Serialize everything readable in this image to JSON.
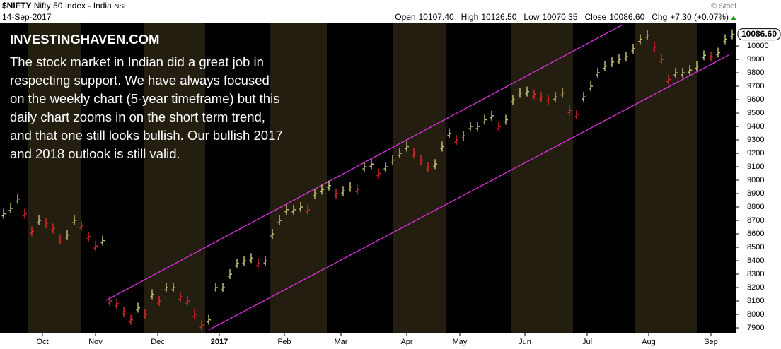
{
  "header": {
    "symbol": "$NIFTY",
    "name": "Nifty 50 Index - India",
    "exchange": "NSE",
    "date": "14-Sep-2017",
    "copyright": "© StockCharts.com",
    "quote": [
      {
        "label": "Open",
        "value": "10107.40"
      },
      {
        "label": "High",
        "value": "10126.50"
      },
      {
        "label": "Low",
        "value": "10070.35"
      },
      {
        "label": "Close",
        "value": "10086.60"
      },
      {
        "label": "Chg",
        "value": "+7.30 (+0.07%)"
      }
    ]
  },
  "annotation": {
    "title": "INVESTINGHAVEN.COM",
    "lines": [
      "The stock market in Indian did a great job in",
      "respecting support. We have always focused",
      "on the weekly chart (5-year timeframe) but this",
      "daily chart zooms in on the short term trend,",
      "and that one still looks bullish. Our bullish 2017",
      "and 2018 outlook is still valid."
    ]
  },
  "chart_data": {
    "type": "close-bar",
    "x": [
      0,
      1,
      2,
      3,
      4,
      5,
      6,
      7,
      8,
      9,
      10,
      11,
      12,
      13,
      14,
      15,
      16,
      17,
      18,
      19,
      20,
      21,
      22,
      23,
      24,
      25,
      26,
      27,
      28,
      29,
      30,
      31,
      32,
      33,
      34,
      35,
      36,
      37,
      38,
      39,
      40,
      41,
      42,
      43,
      44,
      45,
      46,
      47,
      48,
      49,
      50,
      51,
      52,
      53,
      54,
      55,
      56,
      57,
      58,
      59,
      60,
      61,
      62,
      63,
      64,
      65,
      66,
      67,
      68,
      69,
      70,
      71,
      72,
      73,
      74,
      75,
      76,
      77,
      78,
      79,
      80,
      81,
      82,
      83,
      84,
      85,
      86,
      87,
      88,
      89,
      90,
      91,
      92,
      93,
      94,
      95,
      96,
      97,
      98,
      99,
      100,
      101,
      102,
      103
    ],
    "values": [
      8750,
      8790,
      8860,
      8750,
      8620,
      8700,
      8680,
      8640,
      8560,
      8590,
      8700,
      8660,
      8580,
      8510,
      8550,
      8100,
      8080,
      8020,
      7960,
      8050,
      8000,
      8150,
      8100,
      8200,
      8200,
      8130,
      8100,
      8000,
      7920,
      7960,
      8200,
      8200,
      8300,
      8380,
      8400,
      8420,
      8380,
      8400,
      8600,
      8700,
      8780,
      8780,
      8800,
      8780,
      8900,
      8930,
      8960,
      8900,
      8920,
      8950,
      8930,
      9100,
      9120,
      9050,
      9100,
      9150,
      9200,
      9250,
      9200,
      9150,
      9100,
      9120,
      9250,
      9350,
      9300,
      9330,
      9400,
      9400,
      9450,
      9480,
      9400,
      9450,
      9600,
      9650,
      9660,
      9640,
      9620,
      9600,
      9620,
      9650,
      9520,
      9490,
      9620,
      9700,
      9800,
      9850,
      9880,
      9900,
      9920,
      9980,
      10050,
      10080,
      9990,
      9900,
      9750,
      9800,
      9800,
      9820,
      9850,
      9930,
      9920,
      9950,
      10050,
      10086.6
    ],
    "last_value_label": "10086.60",
    "up_color": "#c8c878",
    "down_color": "#e02828",
    "trend_color": "#e030e0",
    "trendlines": [
      {
        "x": [
          14.5,
          87.5
        ],
        "y": [
          8105,
          10158
        ]
      },
      {
        "x": [
          29,
          102.5
        ],
        "y": [
          7884,
          9932
        ]
      }
    ],
    "xlim": [
      -0.5,
      103.5
    ],
    "xticks": [
      {
        "value": 5.5,
        "label": "Oct"
      },
      {
        "value": 13,
        "label": "Nov"
      },
      {
        "value": 21.8,
        "label": "Dec"
      },
      {
        "value": 30.5,
        "label": "2017"
      },
      {
        "value": 39.7,
        "label": "Feb"
      },
      {
        "value": 47.7,
        "label": "Mar"
      },
      {
        "value": 57,
        "label": "Apr"
      },
      {
        "value": 64.5,
        "label": "May"
      },
      {
        "value": 73.7,
        "label": "Jun"
      },
      {
        "value": 82.5,
        "label": "Jul"
      },
      {
        "value": 91.2,
        "label": "Aug"
      },
      {
        "value": 100,
        "label": "Sep"
      }
    ],
    "ylim": [
      7858,
      10174
    ],
    "yticks": [
      7900,
      8000,
      8100,
      8200,
      8300,
      8400,
      8500,
      8600,
      8700,
      8800,
      8900,
      9000,
      9100,
      9200,
      9300,
      9400,
      9500,
      9600,
      9700,
      9800,
      9900,
      10000
    ]
  }
}
